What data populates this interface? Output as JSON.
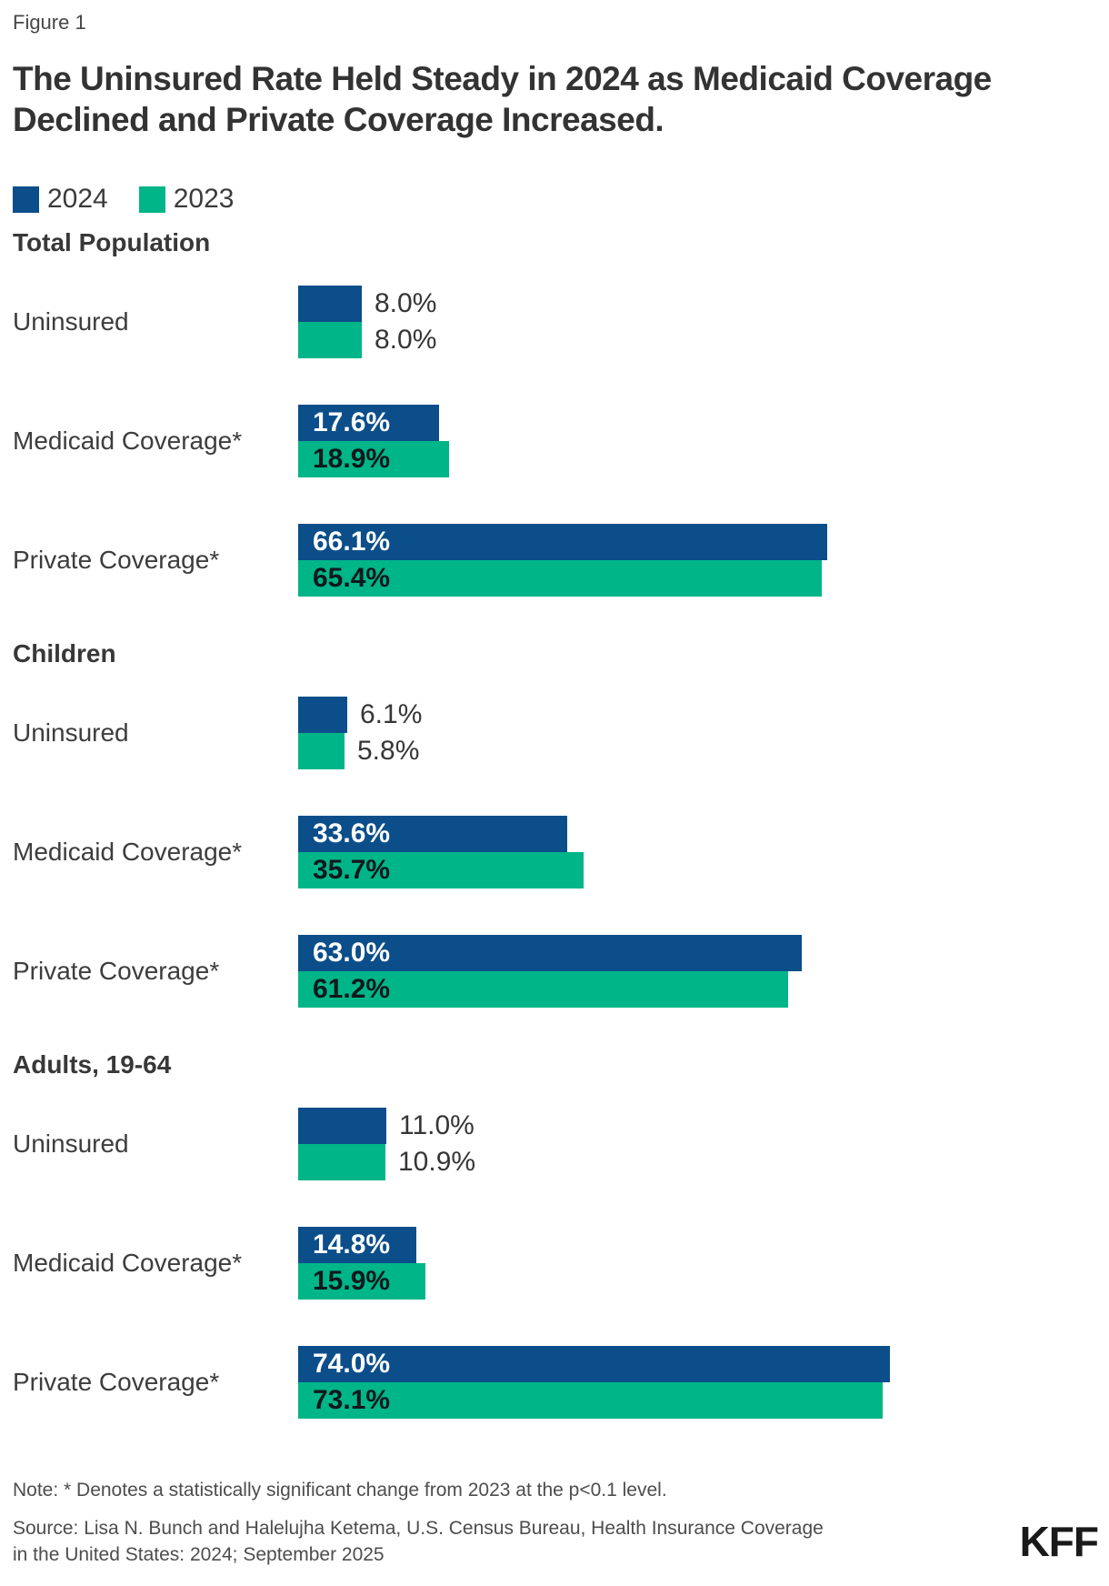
{
  "figure_label": "Figure 1",
  "title": "The Uninsured Rate Held Steady in 2024 as Medicaid Coverage Declined and Private Coverage Increased.",
  "legend": {
    "items": [
      {
        "label": "2024",
        "color": "#0b4e8a"
      },
      {
        "label": "2023",
        "color": "#00b588"
      }
    ]
  },
  "note": "Note: * Denotes a statistically significant change from 2023 at the p<0.1 level.",
  "source": {
    "line1": "Source: Lisa N. Bunch and Halelujha Ketema, U.S. Census Bureau, Health Insurance Coverage",
    "line2": "in the United States: 2024; September 2025"
  },
  "logo_text": "KFF",
  "chart_data": {
    "type": "bar",
    "orientation": "horizontal",
    "unit": "%",
    "axis_max": 100,
    "grid": false,
    "legend_position": "top-left",
    "series": [
      {
        "name": "2024",
        "color": "#0b4e8a",
        "label_color": "#ffffff"
      },
      {
        "name": "2023",
        "color": "#00b588",
        "label_color": "#10181d"
      }
    ],
    "sections": [
      {
        "heading": "Total Population",
        "rows": [
          {
            "label": "Uninsured",
            "values": [
              8.0,
              8.0
            ]
          },
          {
            "label": "Medicaid Coverage*",
            "values": [
              17.6,
              18.9
            ]
          },
          {
            "label": "Private Coverage*",
            "values": [
              66.1,
              65.4
            ]
          }
        ]
      },
      {
        "heading": "Children",
        "rows": [
          {
            "label": "Uninsured",
            "values": [
              6.1,
              5.8
            ]
          },
          {
            "label": "Medicaid Coverage*",
            "values": [
              33.6,
              35.7
            ]
          },
          {
            "label": "Private Coverage*",
            "values": [
              63.0,
              61.2
            ]
          }
        ]
      },
      {
        "heading": "Adults, 19-64",
        "rows": [
          {
            "label": "Uninsured",
            "values": [
              11.0,
              10.9
            ]
          },
          {
            "label": "Medicaid Coverage*",
            "values": [
              14.8,
              15.9
            ]
          },
          {
            "label": "Private Coverage*",
            "values": [
              74.0,
              73.1
            ]
          }
        ]
      }
    ]
  }
}
